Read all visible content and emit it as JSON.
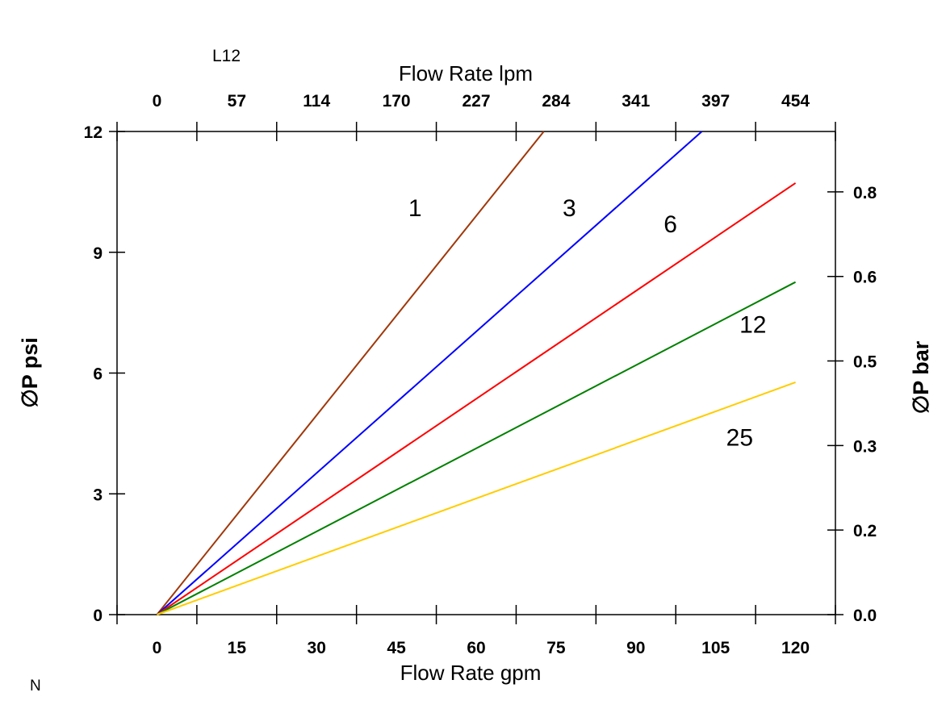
{
  "chart_data": {
    "type": "line",
    "title": "L12",
    "corner_note": "N",
    "xlabel": "Flow Rate gpm",
    "x2label": "Flow Rate lpm",
    "ylabel": "∅P psi",
    "y2label": "∅P bar",
    "xlim": [
      -7.5,
      127.5
    ],
    "ylim": [
      0,
      12
    ],
    "x_ticks": [
      "0",
      "15",
      "30",
      "45",
      "60",
      "75",
      "90",
      "105",
      "120"
    ],
    "x_tick_values": [
      0,
      15,
      30,
      45,
      60,
      75,
      90,
      105,
      120
    ],
    "x2_ticks": [
      "0",
      "57",
      "114",
      "170",
      "227",
      "284",
      "341",
      "397",
      "454"
    ],
    "y_ticks": [
      "0",
      "3",
      "6",
      "9",
      "12"
    ],
    "y_tick_values": [
      0,
      3,
      6,
      9,
      12
    ],
    "y2_ticks": [
      "0.0",
      "0.2",
      "0.3",
      "0.5",
      "0.6",
      "0.8"
    ],
    "y2_tick_psi_values": [
      0,
      2.1,
      4.2,
      6.3,
      8.4,
      10.5
    ],
    "grid": false,
    "series": [
      {
        "name": "1",
        "color": "#a0380a",
        "x": [
          0,
          72.7
        ],
        "y": [
          0,
          12
        ],
        "label_at": [
          48.5,
          10.1
        ]
      },
      {
        "name": "3",
        "color": "#0000ff",
        "x": [
          0,
          102.4
        ],
        "y": [
          0,
          12
        ],
        "label_at": [
          77.5,
          10.1
        ]
      },
      {
        "name": "6",
        "color": "#ff0000",
        "x": [
          0,
          120
        ],
        "y": [
          0,
          10.72
        ],
        "label_at": [
          96.5,
          9.7
        ]
      },
      {
        "name": "12",
        "color": "#008000",
        "x": [
          0,
          120
        ],
        "y": [
          0,
          8.26
        ],
        "label_at": [
          112,
          7.2
        ]
      },
      {
        "name": "25",
        "color": "#ffcc00",
        "x": [
          0,
          120
        ],
        "y": [
          0,
          5.77
        ],
        "label_at": [
          109.5,
          4.4
        ]
      }
    ]
  }
}
